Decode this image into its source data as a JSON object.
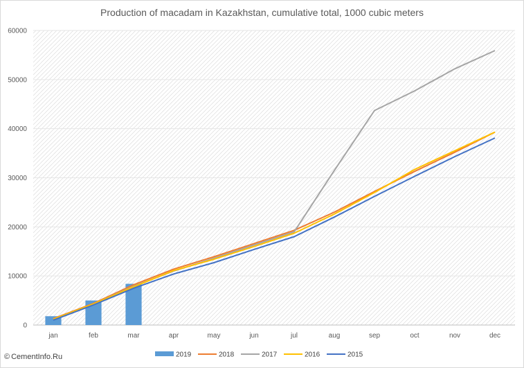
{
  "watermark": {
    "icon": "copyright-icon",
    "symbol": "©",
    "text": "CementInfo.Ru"
  },
  "chart_data": {
    "type": "bar+line",
    "title": "Production of macadam in Kazakhstan, cumulative total, 1000 cubic meters",
    "xlabel": "",
    "ylabel": "",
    "categories": [
      "jan",
      "feb",
      "mar",
      "apr",
      "may",
      "jun",
      "jul",
      "aug",
      "sep",
      "oct",
      "nov",
      "dec"
    ],
    "ylim": [
      0,
      60000
    ],
    "yticks": [
      0,
      10000,
      20000,
      30000,
      40000,
      50000,
      60000
    ],
    "grid": "diagonal hatch background",
    "legend_position": "bottom",
    "bar_series": {
      "name": "2019",
      "color": "#5b9bd5",
      "values": [
        1800,
        5000,
        8400
      ]
    },
    "series": [
      {
        "name": "2018",
        "color": "#ed7d31",
        "values": [
          1300,
          4400,
          8200,
          11400,
          13900,
          16600,
          19300,
          23000,
          27200,
          31300,
          35200,
          39300
        ]
      },
      {
        "name": "2017",
        "color": "#a5a5a5",
        "values": [
          1200,
          4300,
          7900,
          11000,
          13600,
          16300,
          19000,
          31500,
          43700,
          47700,
          52200,
          55900
        ]
      },
      {
        "name": "2016",
        "color": "#ffc000",
        "values": [
          1200,
          4300,
          7800,
          11100,
          13400,
          16000,
          18700,
          22600,
          27000,
          31700,
          35500,
          39300
        ]
      },
      {
        "name": "2015",
        "color": "#4472c4",
        "values": [
          1000,
          4100,
          7500,
          10400,
          12700,
          15400,
          18000,
          22000,
          26200,
          30300,
          34300,
          38100
        ]
      }
    ]
  }
}
